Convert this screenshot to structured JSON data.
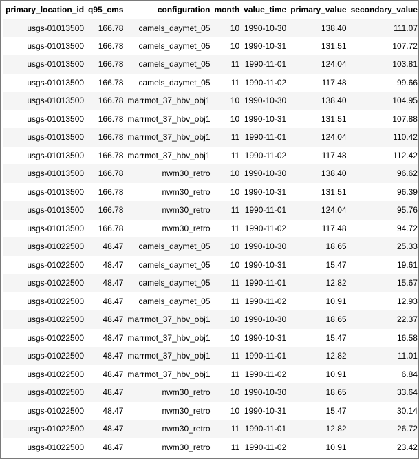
{
  "table": {
    "columns": [
      "primary_location_id",
      "q95_cms",
      "configuration",
      "month",
      "value_time",
      "primary_value",
      "secondary_value"
    ],
    "rows": [
      [
        "usgs-01013500",
        "166.78",
        "camels_daymet_05",
        "10",
        "1990-10-30",
        "138.40",
        "111.07"
      ],
      [
        "usgs-01013500",
        "166.78",
        "camels_daymet_05",
        "10",
        "1990-10-31",
        "131.51",
        "107.72"
      ],
      [
        "usgs-01013500",
        "166.78",
        "camels_daymet_05",
        "11",
        "1990-11-01",
        "124.04",
        "103.81"
      ],
      [
        "usgs-01013500",
        "166.78",
        "camels_daymet_05",
        "11",
        "1990-11-02",
        "117.48",
        "99.66"
      ],
      [
        "usgs-01013500",
        "166.78",
        "marrmot_37_hbv_obj1",
        "10",
        "1990-10-30",
        "138.40",
        "104.95"
      ],
      [
        "usgs-01013500",
        "166.78",
        "marrmot_37_hbv_obj1",
        "10",
        "1990-10-31",
        "131.51",
        "107.88"
      ],
      [
        "usgs-01013500",
        "166.78",
        "marrmot_37_hbv_obj1",
        "11",
        "1990-11-01",
        "124.04",
        "110.42"
      ],
      [
        "usgs-01013500",
        "166.78",
        "marrmot_37_hbv_obj1",
        "11",
        "1990-11-02",
        "117.48",
        "112.42"
      ],
      [
        "usgs-01013500",
        "166.78",
        "nwm30_retro",
        "10",
        "1990-10-30",
        "138.40",
        "96.62"
      ],
      [
        "usgs-01013500",
        "166.78",
        "nwm30_retro",
        "10",
        "1990-10-31",
        "131.51",
        "96.39"
      ],
      [
        "usgs-01013500",
        "166.78",
        "nwm30_retro",
        "11",
        "1990-11-01",
        "124.04",
        "95.76"
      ],
      [
        "usgs-01013500",
        "166.78",
        "nwm30_retro",
        "11",
        "1990-11-02",
        "117.48",
        "94.72"
      ],
      [
        "usgs-01022500",
        "48.47",
        "camels_daymet_05",
        "10",
        "1990-10-30",
        "18.65",
        "25.33"
      ],
      [
        "usgs-01022500",
        "48.47",
        "camels_daymet_05",
        "10",
        "1990-10-31",
        "15.47",
        "19.61"
      ],
      [
        "usgs-01022500",
        "48.47",
        "camels_daymet_05",
        "11",
        "1990-11-01",
        "12.82",
        "15.67"
      ],
      [
        "usgs-01022500",
        "48.47",
        "camels_daymet_05",
        "11",
        "1990-11-02",
        "10.91",
        "12.93"
      ],
      [
        "usgs-01022500",
        "48.47",
        "marrmot_37_hbv_obj1",
        "10",
        "1990-10-30",
        "18.65",
        "22.37"
      ],
      [
        "usgs-01022500",
        "48.47",
        "marrmot_37_hbv_obj1",
        "10",
        "1990-10-31",
        "15.47",
        "16.58"
      ],
      [
        "usgs-01022500",
        "48.47",
        "marrmot_37_hbv_obj1",
        "11",
        "1990-11-01",
        "12.82",
        "11.01"
      ],
      [
        "usgs-01022500",
        "48.47",
        "marrmot_37_hbv_obj1",
        "11",
        "1990-11-02",
        "10.91",
        "6.84"
      ],
      [
        "usgs-01022500",
        "48.47",
        "nwm30_retro",
        "10",
        "1990-10-30",
        "18.65",
        "33.64"
      ],
      [
        "usgs-01022500",
        "48.47",
        "nwm30_retro",
        "10",
        "1990-10-31",
        "15.47",
        "30.14"
      ],
      [
        "usgs-01022500",
        "48.47",
        "nwm30_retro",
        "11",
        "1990-11-01",
        "12.82",
        "26.72"
      ],
      [
        "usgs-01022500",
        "48.47",
        "nwm30_retro",
        "11",
        "1990-11-02",
        "10.91",
        "23.42"
      ]
    ]
  },
  "colors": {
    "row_stripe": "#f5f5f5",
    "header_rule": "#bdbdbd",
    "frame_border": "#7a7a7a"
  }
}
